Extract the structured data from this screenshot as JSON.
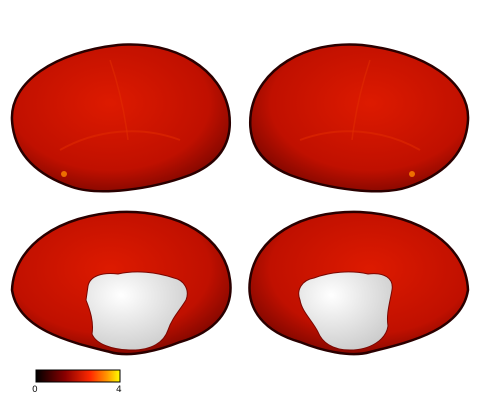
{
  "figure": {
    "type": "brain-surface-montage",
    "views": [
      {
        "hemisphere": "left",
        "view": "lateral"
      },
      {
        "hemisphere": "right",
        "view": "lateral"
      },
      {
        "hemisphere": "left",
        "view": "medial"
      },
      {
        "hemisphere": "right",
        "view": "medial"
      }
    ],
    "colormap": "hot",
    "colormap_colors": [
      "#000000",
      "#8b0000",
      "#ff2a00",
      "#ff9a00",
      "#ffff00"
    ],
    "surface_base_color": "#c81000",
    "medial_wall_color": "#e8e8e8"
  },
  "colorbar": {
    "min_label": "0",
    "max_label": "4",
    "min": 0,
    "max": 4
  }
}
